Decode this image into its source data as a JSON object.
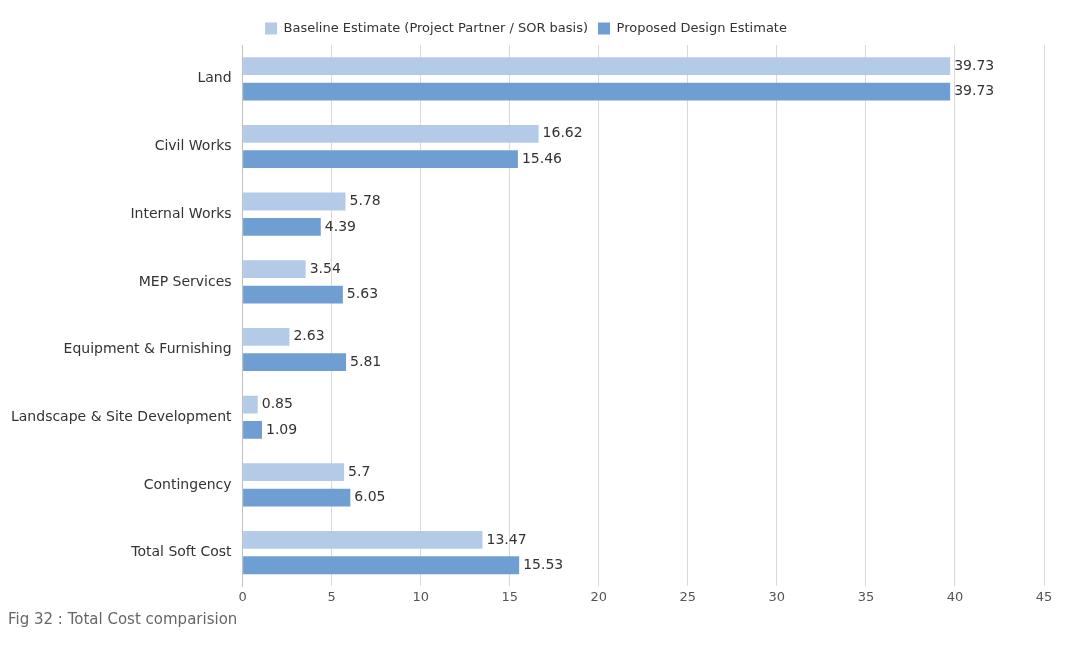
{
  "chart_data": {
    "type": "bar",
    "orientation": "horizontal",
    "categories": [
      "Land",
      "Civil Works",
      "Internal Works",
      "MEP Services",
      "Equipment & Furnishing",
      "Landscape & Site Development",
      "Contingency",
      "Total Soft Cost"
    ],
    "series": [
      {
        "name": "Baseline Estimate (Project Partner / SOR basis)",
        "color": "#b4cbe8",
        "values": [
          39.73,
          16.62,
          5.78,
          3.54,
          2.63,
          0.85,
          5.7,
          13.47
        ]
      },
      {
        "name": "Proposed Design Estimate",
        "color": "#6f9fd2",
        "values": [
          39.73,
          15.46,
          4.39,
          5.63,
          5.81,
          1.09,
          6.05,
          15.53
        ]
      }
    ],
    "xlim": [
      0,
      45
    ],
    "xticks": [
      0,
      5,
      10,
      15,
      20,
      25,
      30,
      35,
      40,
      45
    ],
    "grid": "x",
    "legend": "top",
    "data_labels": true,
    "annotations": [
      "Fig 32 : Total Cost comparision"
    ]
  }
}
